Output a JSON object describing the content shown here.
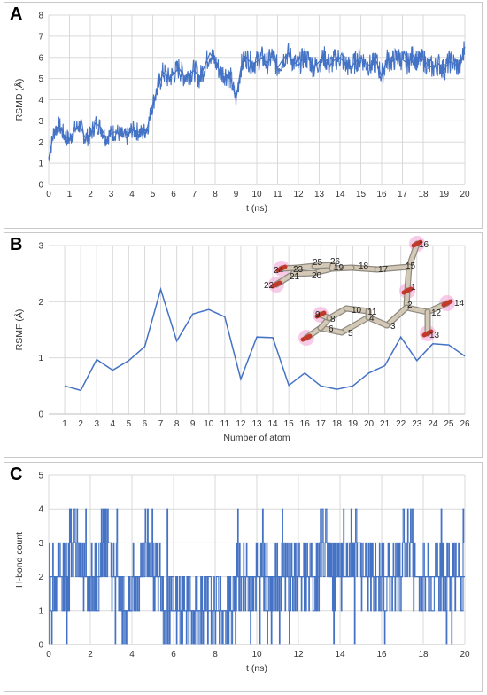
{
  "panels": {
    "a": "A",
    "b": "B",
    "c": "C"
  },
  "colors": {
    "series": "#4472c4",
    "grid": "#d9d9d9",
    "axis": "#bfbfbf",
    "bond": "#d4c9b6",
    "oxygen": "#c0392b",
    "glow": "#f2a8d8"
  },
  "chart_data": [
    {
      "type": "line",
      "xlabel": "t (ns)",
      "ylabel": "RSMD (Å)",
      "xlim": [
        0,
        20
      ],
      "ylim": [
        0,
        8
      ],
      "xticks": [
        0,
        1,
        2,
        3,
        4,
        5,
        6,
        7,
        8,
        9,
        10,
        11,
        12,
        13,
        14,
        15,
        16,
        17,
        18,
        19,
        20
      ],
      "yticks": [
        0,
        1,
        2,
        3,
        4,
        5,
        6,
        7,
        8
      ],
      "grid": true,
      "series": [
        {
          "x": [
            0,
            0.25,
            0.5,
            0.75,
            1,
            1.25,
            1.5,
            1.75,
            2,
            2.25,
            2.5,
            2.75,
            3,
            3.25,
            3.5,
            3.75,
            4,
            4.25,
            4.5,
            4.75,
            5,
            5.25,
            5.5,
            5.75,
            6,
            6.25,
            6.5,
            6.75,
            7,
            7.25,
            7.5,
            7.75,
            8,
            8.25,
            8.5,
            8.75,
            9,
            9.25,
            9.5,
            9.75,
            10,
            10.25,
            10.5,
            10.75,
            11,
            11.25,
            11.5,
            11.75,
            12,
            12.25,
            12.5,
            12.75,
            13,
            13.25,
            13.5,
            13.75,
            14,
            14.25,
            14.5,
            14.75,
            15,
            15.25,
            15.5,
            15.75,
            16,
            16.25,
            16.5,
            16.75,
            17,
            17.25,
            17.5,
            17.75,
            18,
            18.25,
            18.5,
            18.75,
            19,
            19.25,
            19.5,
            19.75,
            20
          ],
          "values": [
            1.2,
            2.5,
            2.8,
            2.3,
            2.1,
            2.6,
            2.8,
            2.2,
            2.3,
            2.9,
            2.7,
            2.2,
            2.4,
            2.5,
            2.3,
            2.2,
            2.6,
            2.5,
            2.4,
            2.7,
            3.8,
            4.6,
            5.3,
            5.0,
            5.2,
            5.5,
            5.1,
            5.2,
            5.4,
            5.0,
            5.6,
            6.2,
            5.8,
            5.3,
            5.2,
            5.0,
            4.0,
            5.6,
            6.0,
            5.7,
            5.8,
            6.0,
            5.7,
            6.1,
            5.5,
            5.9,
            6.2,
            5.8,
            5.6,
            6.0,
            5.9,
            5.5,
            5.8,
            6.0,
            5.6,
            5.9,
            6.0,
            5.7,
            5.5,
            5.8,
            6.0,
            5.7,
            5.6,
            5.8,
            5.1,
            5.9,
            5.8,
            6.0,
            5.9,
            5.7,
            6.1,
            5.8,
            5.9,
            5.6,
            5.5,
            5.7,
            5.4,
            5.8,
            5.7,
            5.5,
            6.5
          ]
        }
      ]
    },
    {
      "type": "line",
      "xlabel": "Number of atom",
      "ylabel": "RSMF (Å)",
      "xlim": [
        0,
        26
      ],
      "ylim": [
        0,
        3
      ],
      "categories": [
        "1",
        "2",
        "3",
        "4",
        "5",
        "6",
        "7",
        "8",
        "9",
        "10",
        "11",
        "12",
        "13",
        "14",
        "15",
        "16",
        "17",
        "18",
        "19",
        "20",
        "21",
        "22",
        "23",
        "24",
        "25",
        "26"
      ],
      "yticks": [
        0,
        1,
        2,
        3
      ],
      "grid": true,
      "series": [
        {
          "values": [
            0.5,
            0.42,
            0.97,
            0.78,
            0.95,
            1.2,
            2.22,
            1.3,
            1.78,
            1.86,
            1.73,
            0.62,
            1.37,
            1.36,
            0.51,
            0.73,
            0.5,
            0.44,
            0.5,
            0.73,
            0.86,
            1.37,
            0.95,
            1.25,
            1.23,
            1.03
          ]
        }
      ]
    },
    {
      "type": "line",
      "xlabel": "t (ns)",
      "ylabel": "H-bond count",
      "xlim": [
        0,
        20
      ],
      "ylim": [
        0,
        5
      ],
      "xticks": [
        0,
        2,
        4,
        6,
        8,
        10,
        12,
        14,
        16,
        18,
        20
      ],
      "yticks": [
        0,
        1,
        2,
        3,
        4,
        5
      ],
      "grid": true,
      "series": [
        {
          "x": [
            0,
            0.5,
            1,
            1.5,
            2,
            2.5,
            3,
            3.5,
            4,
            4.5,
            5,
            5.5,
            6,
            6.5,
            7,
            7.5,
            8,
            8.5,
            9,
            9.5,
            10,
            10.5,
            11,
            11.5,
            12,
            12.5,
            13,
            13.5,
            14,
            14.5,
            15,
            15.5,
            16,
            16.5,
            17,
            17.5,
            18,
            18.5,
            19,
            19.5,
            20
          ],
          "values": [
            2,
            2,
            3,
            2,
            2,
            3,
            2,
            1,
            2,
            3,
            2,
            1,
            1,
            1,
            1,
            1,
            1,
            1,
            2,
            2,
            2,
            2,
            2,
            2,
            2,
            2,
            3,
            2,
            2,
            3,
            2,
            2,
            2,
            2,
            3,
            2,
            2,
            2,
            2,
            2,
            2
          ]
        }
      ]
    }
  ],
  "molecule": {
    "labels": [
      "1",
      "2",
      "3",
      "4",
      "5",
      "6",
      "8",
      "9",
      "10",
      "11",
      "12",
      "13",
      "14",
      "15",
      "16",
      "17",
      "18",
      "19",
      "20",
      "21",
      "22",
      "23",
      "24",
      "25",
      "26"
    ]
  }
}
